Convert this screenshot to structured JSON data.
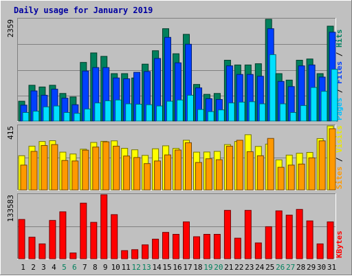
{
  "chart_data": {
    "title": "Daily usage for January 2019",
    "type": "bar",
    "categories": [
      "1",
      "2",
      "3",
      "4",
      "5",
      "6",
      "7",
      "8",
      "9",
      "10",
      "11",
      "12",
      "13",
      "14",
      "15",
      "16",
      "17",
      "18",
      "19",
      "20",
      "21",
      "22",
      "23",
      "24",
      "25",
      "26",
      "27",
      "28",
      "29",
      "30",
      "31"
    ],
    "weekend_days": [
      "5",
      "6",
      "12",
      "13",
      "19",
      "20",
      "26",
      "27"
    ],
    "panels": [
      {
        "id": "hits-files-pages",
        "ymax": 2359,
        "ymax_label": "2359",
        "right_label_parts": [
          "Pages",
          " / ",
          "Files",
          " / ",
          "Hits"
        ],
        "series": [
          {
            "name": "Hits",
            "color": "#00805c",
            "values": [
              460,
              830,
              790,
              830,
              640,
              560,
              1360,
              1580,
              1500,
              1100,
              1100,
              1000,
              1320,
              1630,
              2140,
              1560,
              2010,
              850,
              620,
              640,
              1410,
              1300,
              1300,
              1330,
              2359,
              1100,
              950,
              1410,
              1440,
              1100,
              2200
            ]
          },
          {
            "name": "Files",
            "color": "#0040ff",
            "values": [
              370,
              700,
              600,
              740,
              530,
              380,
              1160,
              1240,
              1240,
              1000,
              980,
              1130,
              1150,
              1450,
              1940,
              1350,
              1780,
              770,
              520,
              500,
              1280,
              1080,
              1080,
              1040,
              2140,
              920,
              800,
              1280,
              1300,
              1020,
              2060
            ]
          },
          {
            "name": "Pages",
            "color": "#00e0ff",
            "values": [
              200,
              230,
              330,
              350,
              200,
              180,
              280,
              420,
              470,
              490,
              400,
              390,
              380,
              350,
              460,
              490,
              600,
              270,
              220,
              260,
              420,
              440,
              450,
              400,
              1540,
              400,
              200,
              360,
              780,
              690,
              1200
            ]
          }
        ]
      },
      {
        "id": "sites-visits",
        "ymax": 415,
        "ymax_label": "415",
        "right_label_parts": [
          "Sites",
          " / ",
          "Visits"
        ],
        "series": [
          {
            "name": "Visits",
            "color": "#ffff00",
            "values": [
              222,
              284,
              314,
              319,
              245,
              233,
              264,
              308,
              315,
              318,
              270,
              260,
              224,
              267,
              286,
              269,
              322,
              245,
              246,
              250,
              294,
              314,
              358,
              282,
              297,
              195,
              226,
              238,
              243,
              333,
              415
            ]
          },
          {
            "name": "Sites",
            "color": "#ff9900",
            "values": [
              161,
              250,
              288,
              294,
              191,
              188,
              258,
              278,
              312,
              284,
              220,
              210,
              171,
              188,
              227,
              259,
              306,
              178,
              202,
              196,
              284,
              322,
              248,
              222,
              334,
              147,
              161,
              168,
              208,
              318,
              397
            ]
          }
        ]
      },
      {
        "id": "kbytes",
        "ymax": 133583,
        "ymax_label": "133583",
        "right_label_parts": [
          "KBytes"
        ],
        "series": [
          {
            "name": "KBytes",
            "color": "#ff0000",
            "values": [
              82000,
              45000,
              31000,
              80000,
              98000,
              12000,
              116000,
              76000,
              133583,
              92000,
              17000,
              19000,
              29000,
              41000,
              55000,
              51000,
              77000,
              46000,
              51000,
              51000,
              101000,
              43000,
              101000,
              33000,
              67000,
              100000,
              91000,
              103000,
              79000,
              31000,
              77000
            ]
          }
        ]
      }
    ]
  }
}
